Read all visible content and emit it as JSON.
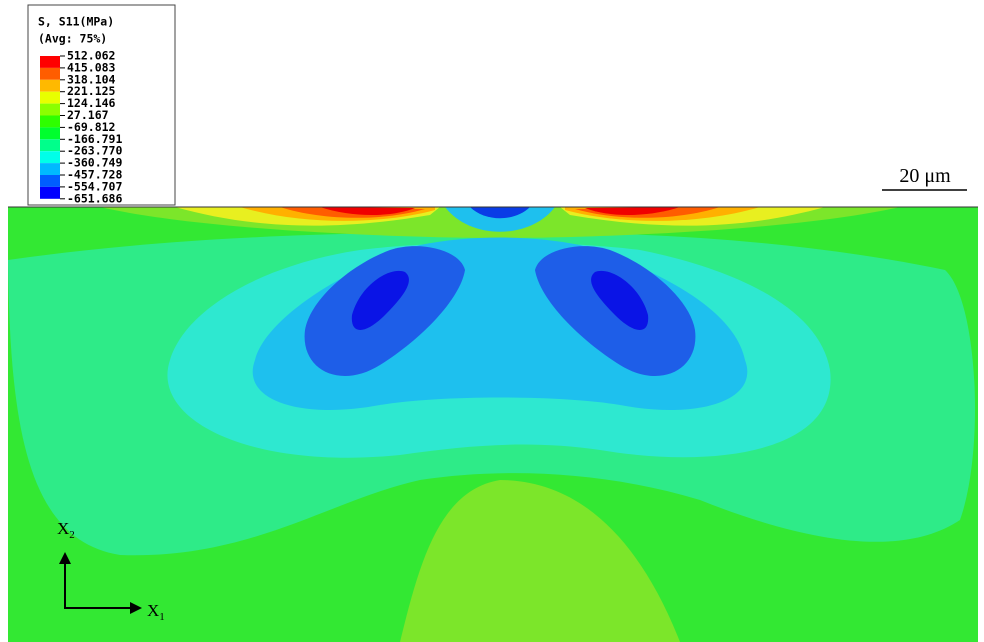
{
  "legend": {
    "title": "S, S11(MPa)",
    "subtitle": "(Avg: 75%)",
    "levels": [
      "512.062",
      "415.083",
      "318.104",
      "221.125",
      "124.146",
      "27.167",
      "-69.812",
      "-166.791",
      "-263.770",
      "-360.749",
      "-457.728",
      "-554.707",
      "-651.686"
    ]
  },
  "scale_bar": {
    "label": "20 μm"
  },
  "axes": {
    "x2": {
      "base": "X",
      "sub": "2"
    },
    "x1": {
      "base": "X",
      "sub": "1"
    }
  }
}
